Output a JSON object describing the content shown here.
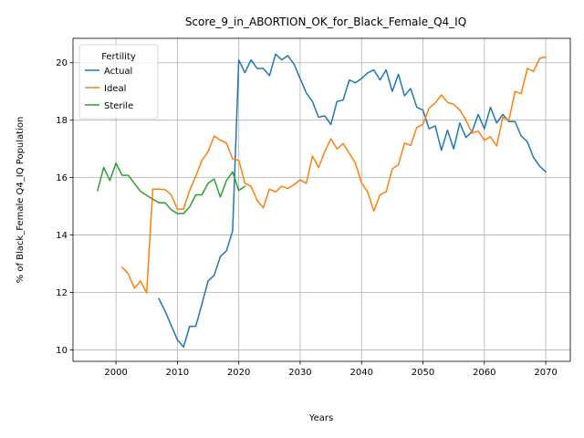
{
  "chart_data": {
    "type": "line",
    "title": "Score_9_in_ABORTION_OK_for_Black_Female_Q4_IQ",
    "xlabel": "Years",
    "ylabel": "% of Black_Female Q4_IQ Population",
    "xlim": [
      1993,
      2074
    ],
    "ylim": [
      9.6,
      20.85
    ],
    "xticks": [
      2000,
      2010,
      2020,
      2030,
      2040,
      2050,
      2060,
      2070
    ],
    "yticks": [
      10,
      12,
      14,
      16,
      18,
      20
    ],
    "grid": true,
    "legend": {
      "title": "Fertility",
      "placement": "top-left"
    },
    "series": [
      {
        "name": "Actual",
        "color": "#1f77b4",
        "x": [
          2007,
          2008,
          2009,
          2010,
          2011,
          2012,
          2013,
          2014,
          2015,
          2016,
          2017,
          2018,
          2019,
          2020,
          2021,
          2022,
          2023,
          2024,
          2025,
          2026,
          2027,
          2028,
          2029,
          2030,
          2031,
          2032,
          2033,
          2034,
          2035,
          2036,
          2037,
          2038,
          2039,
          2040,
          2041,
          2042,
          2043,
          2044,
          2045,
          2046,
          2047,
          2048,
          2049,
          2050,
          2051,
          2052,
          2053,
          2054,
          2055,
          2056,
          2057,
          2058,
          2059,
          2060,
          2061,
          2062,
          2063,
          2064,
          2065,
          2066,
          2067,
          2068,
          2069,
          2070
        ],
        "y": [
          11.78,
          11.35,
          10.85,
          10.35,
          10.1,
          10.82,
          10.82,
          11.6,
          12.4,
          12.6,
          13.25,
          13.45,
          14.15,
          20.1,
          19.65,
          20.1,
          19.8,
          19.8,
          19.55,
          20.3,
          20.1,
          20.25,
          19.95,
          19.45,
          18.95,
          18.65,
          18.1,
          18.15,
          17.85,
          18.65,
          18.7,
          19.4,
          19.3,
          19.45,
          19.65,
          19.75,
          19.4,
          19.75,
          19.0,
          19.6,
          18.85,
          19.1,
          18.45,
          18.35,
          17.7,
          17.8,
          16.95,
          17.65,
          17.0,
          17.9,
          17.4,
          17.6,
          18.2,
          17.7,
          18.45,
          17.9,
          18.2,
          17.95,
          17.95,
          17.45,
          17.25,
          16.7,
          16.4,
          16.2
        ]
      },
      {
        "name": "Ideal",
        "color": "#ff7f0e",
        "x": [
          2001,
          2002,
          2003,
          2004,
          2005,
          2006,
          2007,
          2008,
          2009,
          2010,
          2011,
          2012,
          2013,
          2014,
          2015,
          2016,
          2017,
          2018,
          2019,
          2020,
          2021,
          2022,
          2023,
          2024,
          2025,
          2026,
          2027,
          2028,
          2029,
          2030,
          2031,
          2032,
          2033,
          2034,
          2035,
          2036,
          2037,
          2038,
          2039,
          2040,
          2041,
          2042,
          2043,
          2044,
          2045,
          2046,
          2047,
          2048,
          2049,
          2050,
          2051,
          2052,
          2053,
          2054,
          2055,
          2056,
          2057,
          2058,
          2059,
          2060,
          2061,
          2062,
          2063,
          2064,
          2065,
          2066,
          2067,
          2068,
          2069,
          2070
        ],
        "y": [
          12.88,
          12.65,
          12.15,
          12.4,
          11.98,
          15.6,
          15.6,
          15.58,
          15.4,
          14.9,
          14.9,
          15.55,
          16.05,
          16.6,
          16.9,
          17.45,
          17.3,
          17.2,
          16.65,
          16.6,
          15.8,
          15.7,
          15.2,
          14.95,
          15.6,
          15.5,
          15.7,
          15.62,
          15.75,
          15.92,
          15.8,
          16.75,
          16.35,
          16.9,
          17.35,
          17.0,
          17.18,
          16.85,
          16.5,
          15.82,
          15.5,
          14.83,
          15.4,
          15.5,
          16.3,
          16.45,
          17.2,
          17.12,
          17.75,
          17.85,
          18.42,
          18.6,
          18.88,
          18.62,
          18.55,
          18.35,
          18.0,
          17.55,
          17.62,
          17.3,
          17.42,
          17.1,
          18.1,
          18.0,
          19.0,
          18.92,
          19.8,
          19.7,
          20.15,
          20.2
        ]
      },
      {
        "name": "Sterile",
        "color": "#2ca02c",
        "x": [
          1997,
          1998,
          1999,
          2000,
          2001,
          2002,
          2003,
          2004,
          2005,
          2006,
          2007,
          2008,
          2009,
          2010,
          2011,
          2012,
          2013,
          2014,
          2015,
          2016,
          2017,
          2018,
          2019,
          2020,
          2021
        ],
        "y": [
          15.55,
          16.35,
          15.9,
          16.5,
          16.08,
          16.08,
          15.8,
          15.52,
          15.38,
          15.25,
          15.12,
          15.12,
          14.88,
          14.75,
          14.75,
          14.98,
          15.4,
          15.4,
          15.8,
          15.95,
          15.32,
          15.9,
          16.2,
          15.55,
          15.7
        ]
      }
    ]
  }
}
